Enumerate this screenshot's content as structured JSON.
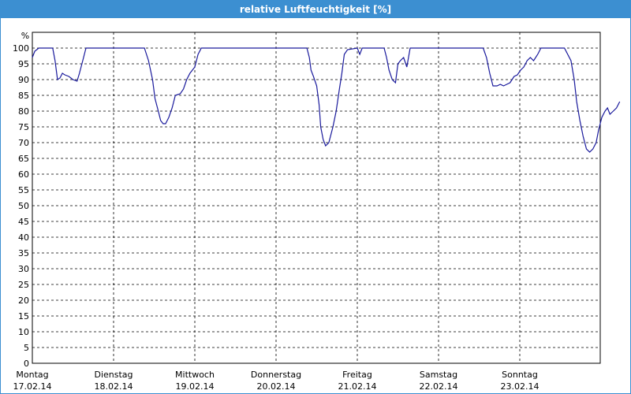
{
  "window": {
    "title": "relative Luftfeuchtigkeit [%]"
  },
  "colors": {
    "titlebar": "#3c8fd1",
    "line": "#1a1a9c",
    "grid": "#000000"
  },
  "chart_data": {
    "type": "line",
    "title": "relative Luftfeuchtigkeit [%]",
    "ylabel": "%",
    "xlabel": "",
    "ylim": [
      0,
      100
    ],
    "yticks": [
      0,
      5,
      10,
      15,
      20,
      25,
      30,
      35,
      40,
      45,
      50,
      55,
      60,
      65,
      70,
      75,
      80,
      85,
      90,
      95,
      100
    ],
    "xlim": [
      0,
      7
    ],
    "x_ticks": [
      {
        "x": 0,
        "day": "Montag",
        "date": "17.02.14"
      },
      {
        "x": 1,
        "day": "Dienstag",
        "date": "18.02.14"
      },
      {
        "x": 2,
        "day": "Mittwoch",
        "date": "19.02.14"
      },
      {
        "x": 3,
        "day": "Donnerstag",
        "date": "20.02.14"
      },
      {
        "x": 4,
        "day": "Freitag",
        "date": "21.02.14"
      },
      {
        "x": 5,
        "day": "Samstag",
        "date": "22.02.14"
      },
      {
        "x": 6,
        "day": "Sonntag",
        "date": "23.02.14"
      }
    ],
    "grid": true,
    "legend": "none",
    "series": [
      {
        "points": [
          [
            0.0,
            97
          ],
          [
            0.03,
            99
          ],
          [
            0.08,
            100
          ],
          [
            0.2,
            100
          ],
          [
            0.25,
            100
          ],
          [
            0.28,
            96
          ],
          [
            0.31,
            90
          ],
          [
            0.34,
            90.5
          ],
          [
            0.37,
            92
          ],
          [
            0.4,
            91.5
          ],
          [
            0.45,
            91
          ],
          [
            0.5,
            90
          ],
          [
            0.55,
            89.5
          ],
          [
            0.58,
            92
          ],
          [
            0.62,
            96
          ],
          [
            0.66,
            100
          ],
          [
            1.0,
            100
          ],
          [
            1.2,
            100
          ],
          [
            1.38,
            100
          ],
          [
            1.43,
            96
          ],
          [
            1.48,
            90
          ],
          [
            1.51,
            84
          ],
          [
            1.55,
            80
          ],
          [
            1.58,
            77
          ],
          [
            1.61,
            76
          ],
          [
            1.64,
            76
          ],
          [
            1.68,
            78
          ],
          [
            1.72,
            81
          ],
          [
            1.76,
            85
          ],
          [
            1.82,
            85.5
          ],
          [
            1.86,
            87
          ],
          [
            1.9,
            90
          ],
          [
            1.94,
            92
          ],
          [
            1.97,
            93
          ],
          [
            2.0,
            94
          ],
          [
            2.04,
            98
          ],
          [
            2.08,
            100
          ],
          [
            2.4,
            100
          ],
          [
            2.8,
            100
          ],
          [
            3.0,
            100
          ],
          [
            3.38,
            100
          ],
          [
            3.41,
            97
          ],
          [
            3.43,
            93
          ],
          [
            3.46,
            91
          ],
          [
            3.5,
            88
          ],
          [
            3.53,
            82
          ],
          [
            3.55,
            75
          ],
          [
            3.58,
            71
          ],
          [
            3.61,
            69
          ],
          [
            3.65,
            70
          ],
          [
            3.7,
            75
          ],
          [
            3.74,
            80
          ],
          [
            3.78,
            87
          ],
          [
            3.81,
            92
          ],
          [
            3.84,
            98
          ],
          [
            3.88,
            99.5
          ],
          [
            4.0,
            100
          ],
          [
            4.03,
            98
          ],
          [
            4.06,
            100
          ],
          [
            4.15,
            100
          ],
          [
            4.25,
            100
          ],
          [
            4.33,
            100
          ],
          [
            4.36,
            97
          ],
          [
            4.39,
            93
          ],
          [
            4.43,
            90
          ],
          [
            4.47,
            89
          ],
          [
            4.5,
            95
          ],
          [
            4.53,
            96
          ],
          [
            4.57,
            97
          ],
          [
            4.61,
            94
          ],
          [
            4.65,
            100
          ],
          [
            5.0,
            100
          ],
          [
            5.4,
            100
          ],
          [
            5.55,
            100
          ],
          [
            5.59,
            97
          ],
          [
            5.63,
            92
          ],
          [
            5.67,
            88
          ],
          [
            5.72,
            88
          ],
          [
            5.76,
            88.5
          ],
          [
            5.8,
            88
          ],
          [
            5.84,
            88.5
          ],
          [
            5.88,
            89
          ],
          [
            5.93,
            91
          ],
          [
            5.97,
            91.5
          ],
          [
            6.01,
            93
          ],
          [
            6.05,
            94
          ],
          [
            6.09,
            96
          ],
          [
            6.13,
            97
          ],
          [
            6.17,
            96
          ],
          [
            6.22,
            98
          ],
          [
            6.26,
            100
          ],
          [
            6.35,
            100
          ],
          [
            6.55,
            100
          ],
          [
            6.63,
            96
          ],
          [
            6.67,
            90
          ],
          [
            6.7,
            83
          ],
          [
            6.74,
            77
          ],
          [
            6.78,
            72
          ],
          [
            6.82,
            68
          ],
          [
            6.86,
            67
          ],
          [
            6.9,
            68
          ],
          [
            6.94,
            70
          ],
          [
            6.97,
            74
          ],
          [
            7.01,
            78
          ],
          [
            7.05,
            80
          ],
          [
            7.08,
            81
          ],
          [
            7.11,
            79
          ],
          [
            7.15,
            80
          ],
          [
            7.19,
            81
          ],
          [
            7.23,
            83
          ]
        ]
      }
    ]
  }
}
